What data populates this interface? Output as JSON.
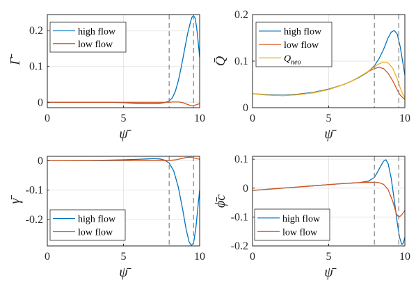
{
  "colors": {
    "high_flow": "#0072BD",
    "low_flow": "#D95319",
    "Q_neo": "#EDB120",
    "grid": "#e6e6e6",
    "axes": "#262626",
    "dashed": "#8c8c8c"
  },
  "chart_data": [
    {
      "type": "line",
      "ylabel": "Γ̄",
      "xlabel": "ψ̄",
      "xlim": [
        0,
        10
      ],
      "ylim": [
        -0.015,
        0.245
      ],
      "xticks": [
        "0",
        "5",
        "10"
      ],
      "yticks": [
        0,
        0.1,
        0.2
      ],
      "ytick_labels": [
        "0",
        "0.1",
        "0.2"
      ],
      "grid": true,
      "legend": "top-left",
      "vlines": [
        8.0,
        9.6
      ],
      "series": [
        {
          "name": "high flow",
          "color_key": "high_flow",
          "x": [
            0,
            1,
            2,
            3,
            4,
            5,
            5.5,
            6,
            6.5,
            7,
            7.5,
            7.8,
            8.0,
            8.2,
            8.4,
            8.6,
            8.8,
            9.0,
            9.2,
            9.4,
            9.5,
            9.6,
            9.7,
            9.8,
            9.9,
            10.0
          ],
          "y": [
            0,
            0,
            0,
            0,
            0,
            -0.001,
            -0.002,
            -0.003,
            -0.004,
            -0.004,
            -0.002,
            0.0,
            0.004,
            0.012,
            0.03,
            0.06,
            0.1,
            0.145,
            0.19,
            0.225,
            0.238,
            0.242,
            0.235,
            0.21,
            0.17,
            0.125
          ]
        },
        {
          "name": "low flow",
          "color_key": "low_flow",
          "x": [
            0,
            2,
            4,
            6,
            7,
            7.5,
            8.0,
            8.3,
            8.6,
            8.9,
            9.2,
            9.5,
            9.7,
            9.9,
            10.0
          ],
          "y": [
            0,
            0,
            0,
            0,
            0,
            0,
            0,
            0.001,
            0.001,
            -0.001,
            -0.006,
            -0.01,
            -0.008,
            -0.005,
            -0.004
          ]
        }
      ]
    },
    {
      "type": "line",
      "ylabel": "Q̄",
      "xlabel": "ψ̄",
      "xlim": [
        0,
        10
      ],
      "ylim": [
        0,
        0.2
      ],
      "xticks": [
        "0",
        "5",
        "10"
      ],
      "yticks": [
        0,
        0.1,
        0.2
      ],
      "ytick_labels": [
        "0",
        "0.1",
        "0.2"
      ],
      "grid": true,
      "legend": "top-left",
      "vlines": [
        8.0,
        9.6
      ],
      "series": [
        {
          "name": "high flow",
          "color_key": "high_flow",
          "x": [
            0,
            1,
            2,
            3,
            4,
            5,
            6,
            6.5,
            7,
            7.5,
            8.0,
            8.3,
            8.6,
            8.9,
            9.1,
            9.3,
            9.5,
            9.7,
            9.85,
            10.0
          ],
          "y": [
            0.03,
            0.028,
            0.027,
            0.029,
            0.033,
            0.04,
            0.05,
            0.057,
            0.065,
            0.075,
            0.09,
            0.105,
            0.125,
            0.15,
            0.162,
            0.166,
            0.158,
            0.13,
            0.1,
            0.07
          ]
        },
        {
          "name": "low flow",
          "color_key": "low_flow",
          "x": [
            0,
            1,
            2,
            3,
            4,
            5,
            6,
            6.5,
            7,
            7.5,
            8.0,
            8.3,
            8.6,
            8.9,
            9.2,
            9.5,
            9.7,
            9.85,
            10.0
          ],
          "y": [
            0.03,
            0.027,
            0.026,
            0.028,
            0.032,
            0.039,
            0.05,
            0.057,
            0.066,
            0.076,
            0.084,
            0.087,
            0.084,
            0.074,
            0.058,
            0.038,
            0.027,
            0.022,
            0.018
          ]
        },
        {
          "name": "Q_neo",
          "label_text": "Q",
          "label_sub": "neo",
          "color_key": "Q_neo",
          "x": [
            0,
            1,
            2,
            3,
            4,
            5,
            6,
            6.5,
            7,
            7.5,
            8.0,
            8.3,
            8.6,
            8.9,
            9.2,
            9.5,
            9.7,
            9.85,
            10.0
          ],
          "y": [
            0.03,
            0.027,
            0.026,
            0.028,
            0.032,
            0.039,
            0.05,
            0.057,
            0.066,
            0.076,
            0.088,
            0.094,
            0.098,
            0.096,
            0.085,
            0.062,
            0.042,
            0.03,
            0.022
          ]
        }
      ]
    },
    {
      "type": "line",
      "ylabel": "γ̄",
      "xlabel": "ψ̄",
      "xlim": [
        0,
        10
      ],
      "ylim": [
        -0.29,
        0.015
      ],
      "xticks": [
        "0",
        "5",
        "10"
      ],
      "yticks": [
        0,
        -0.1,
        -0.2
      ],
      "ytick_labels": [
        "0",
        "-0.1",
        "-0.2"
      ],
      "grid": true,
      "legend": "bottom-left",
      "vlines": [
        8.0,
        9.6
      ],
      "series": [
        {
          "name": "high flow",
          "color_key": "high_flow",
          "x": [
            0,
            1,
            2,
            3,
            4,
            5,
            6,
            6.5,
            7,
            7.4,
            7.7,
            8.0,
            8.3,
            8.6,
            8.9,
            9.1,
            9.3,
            9.45,
            9.6,
            9.75,
            9.9,
            10.0
          ],
          "y": [
            0,
            0,
            0.0005,
            0.001,
            0.002,
            0.003,
            0.005,
            0.006,
            0.007,
            0.006,
            0.002,
            -0.008,
            -0.035,
            -0.09,
            -0.17,
            -0.23,
            -0.275,
            -0.288,
            -0.28,
            -0.23,
            -0.15,
            -0.1
          ]
        },
        {
          "name": "low flow",
          "color_key": "low_flow",
          "x": [
            0,
            2,
            4,
            6,
            7,
            8.0,
            8.4,
            8.8,
            9.1,
            9.4,
            9.6,
            9.8,
            10.0
          ],
          "y": [
            0,
            0,
            0.0005,
            0.001,
            0.001,
            0.001,
            0.003,
            0.007,
            0.011,
            0.012,
            0.01,
            0.007,
            0.005
          ]
        }
      ]
    },
    {
      "type": "line",
      "ylabel": "ϕ̄c",
      "xlabel": "ψ̄",
      "xlim": [
        0,
        10
      ],
      "ylim": [
        -0.2,
        0.11
      ],
      "xticks": [
        "0",
        "5",
        "10"
      ],
      "yticks": [
        0.1,
        0,
        -0.1,
        -0.2
      ],
      "ytick_labels": [
        "0.1",
        "0",
        "-0.1",
        "-0.2"
      ],
      "grid": true,
      "legend": "bottom-left",
      "vlines": [
        8.0,
        9.6
      ],
      "series": [
        {
          "name": "high flow",
          "color_key": "high_flow",
          "x": [
            0,
            1,
            2,
            3,
            4,
            5,
            6,
            7,
            7.6,
            8.0,
            8.2,
            8.4,
            8.6,
            8.75,
            8.9,
            9.1,
            9.3,
            9.5,
            9.65,
            9.8,
            9.9,
            10.0
          ],
          "y": [
            -0.008,
            -0.004,
            0.0,
            0.004,
            0.008,
            0.012,
            0.016,
            0.019,
            0.024,
            0.037,
            0.055,
            0.075,
            0.093,
            0.098,
            0.085,
            0.035,
            -0.04,
            -0.12,
            -0.17,
            -0.195,
            -0.19,
            -0.17
          ]
        },
        {
          "name": "low flow",
          "color_key": "low_flow",
          "x": [
            0,
            1,
            2,
            3,
            4,
            5,
            6,
            7,
            7.6,
            8.0,
            8.3,
            8.6,
            8.9,
            9.2,
            9.45,
            9.6,
            9.75,
            9.9,
            10.0
          ],
          "y": [
            -0.008,
            -0.004,
            0.0,
            0.004,
            0.008,
            0.012,
            0.016,
            0.019,
            0.02,
            0.02,
            0.019,
            0.013,
            -0.005,
            -0.045,
            -0.09,
            -0.1,
            -0.095,
            -0.085,
            -0.077
          ]
        }
      ]
    }
  ]
}
